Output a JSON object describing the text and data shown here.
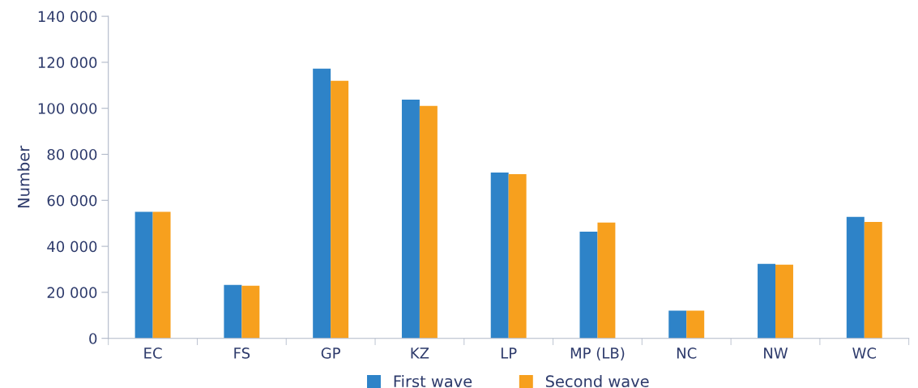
{
  "chart_data": {
    "type": "bar",
    "ylabel": "Number",
    "categories": [
      "EC",
      "FS",
      "GP",
      "KZ",
      "LP",
      "MP (LB)",
      "NC",
      "NW",
      "WC"
    ],
    "series": [
      {
        "name": "First wave",
        "color": "#2e83c8",
        "values": [
          55000,
          23200,
          117200,
          103800,
          72100,
          46400,
          12000,
          32400,
          52800
        ]
      },
      {
        "name": "Second wave",
        "color": "#f7a01e",
        "values": [
          55000,
          22900,
          112000,
          101000,
          71400,
          50300,
          12000,
          32000,
          50600
        ]
      }
    ],
    "ylim": [
      0,
      140000
    ],
    "yticks": [
      {
        "value": 0,
        "label": "0"
      },
      {
        "value": 20000,
        "label": "20 000"
      },
      {
        "value": 40000,
        "label": "40 000"
      },
      {
        "value": 60000,
        "label": "60 000"
      },
      {
        "value": 80000,
        "label": "80 000"
      },
      {
        "value": 100000,
        "label": "100 000"
      },
      {
        "value": 120000,
        "label": "120 000"
      },
      {
        "value": 140000,
        "label": "140 000"
      }
    ],
    "grid": false,
    "legend": "bottom"
  }
}
